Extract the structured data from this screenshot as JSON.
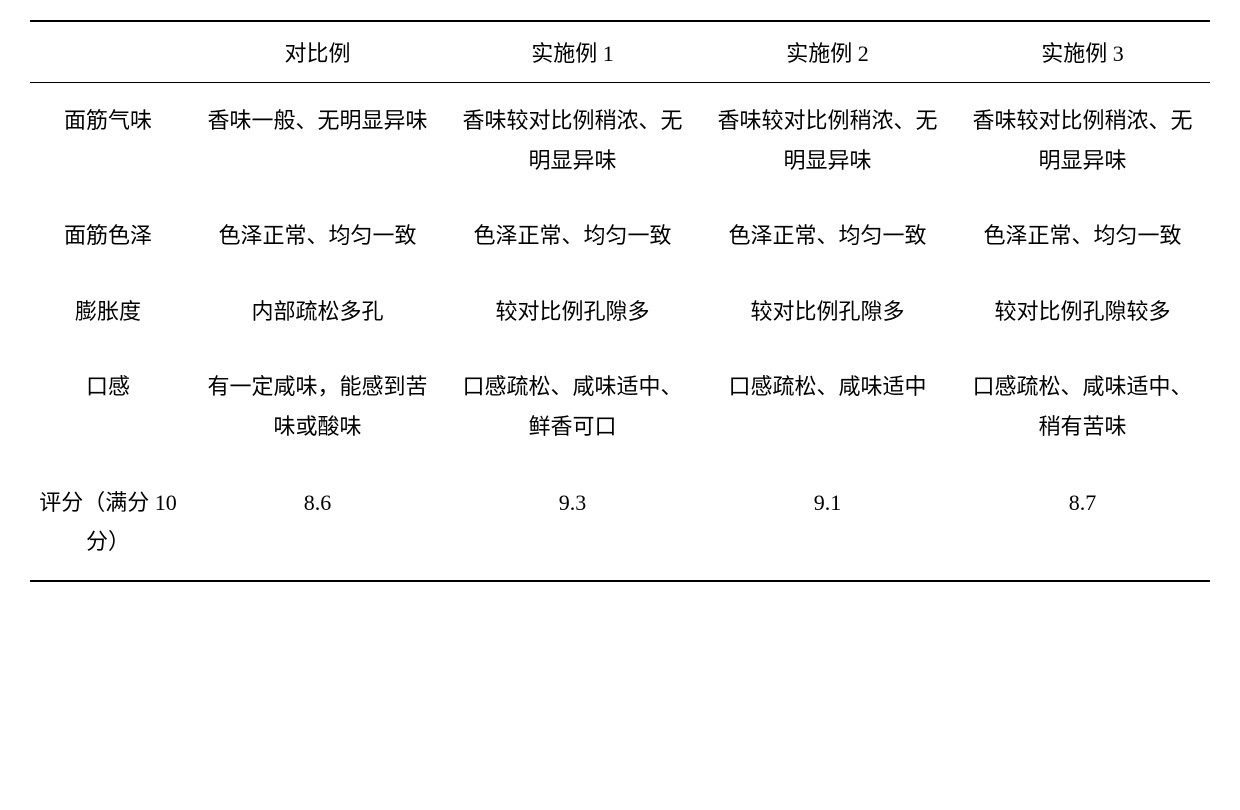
{
  "table": {
    "type": "table",
    "columns": [
      "",
      "对比例",
      "实施例 1",
      "实施例 2",
      "实施例 3"
    ],
    "column_widths": [
      "160px",
      "auto",
      "auto",
      "auto",
      "auto"
    ],
    "rows": [
      {
        "label": "面筋气味",
        "cells": [
          "香味一般、无明显异味",
          "香味较对比例稍浓、无明显异味",
          "香味较对比例稍浓、无明显异味",
          "香味较对比例稍浓、无明显异味"
        ]
      },
      {
        "label": "面筋色泽",
        "cells": [
          "色泽正常、均匀一致",
          "色泽正常、均匀一致",
          "色泽正常、均匀一致",
          "色泽正常、均匀一致"
        ]
      },
      {
        "label": "膨胀度",
        "cells": [
          "内部疏松多孔",
          "较对比例孔隙多",
          "较对比例孔隙多",
          "较对比例孔隙较多"
        ]
      },
      {
        "label": "口感",
        "cells": [
          "有一定咸味，能感到苦味或酸味",
          "口感疏松、咸味适中、鲜香可口",
          "口感疏松、咸味适中",
          "口感疏松、咸味适中、稍有苦味"
        ]
      },
      {
        "label": "评分（满分 10 分）",
        "cells": [
          "8.6",
          "9.3",
          "9.1",
          "8.7"
        ]
      }
    ],
    "font_size": 22,
    "text_color": "#000000",
    "background_color": "#ffffff",
    "border_color": "#000000",
    "border_top_width": 2,
    "border_header_width": 1.5,
    "border_bottom_width": 2,
    "line_height": 1.8
  }
}
